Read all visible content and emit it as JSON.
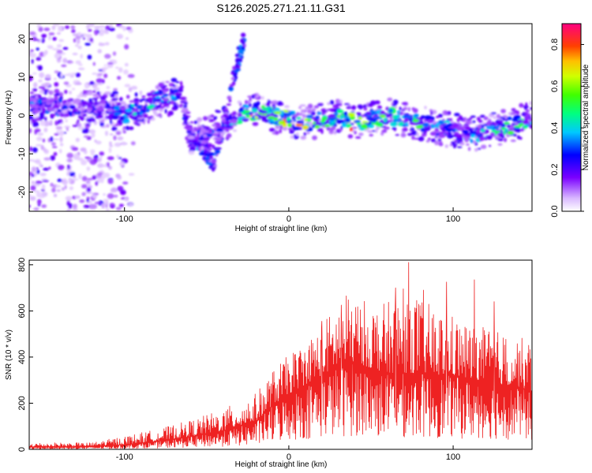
{
  "figure": {
    "title": "S126.2025.271.21.11.G31"
  },
  "chart_data": [
    {
      "type": "heatmap",
      "title": "S126.2025.271.21.11.G31",
      "xlabel": "Height of straight line (km)",
      "ylabel": "Frequency (Hz)",
      "xlim": [
        -158,
        148
      ],
      "ylim": [
        -25,
        24
      ],
      "xticks": [
        -100,
        0,
        100
      ],
      "yticks": [
        -20,
        -10,
        0,
        10,
        20
      ],
      "colorbar": {
        "label": "Normalized spectral amplitude",
        "range": [
          0,
          0.9
        ],
        "ticks": [
          0.0,
          0.2,
          0.4,
          0.6,
          0.8
        ]
      },
      "ridge": {
        "x": [
          -158,
          -140,
          -120,
          -110,
          -100,
          -90,
          -80,
          -70,
          -65,
          -60,
          -50,
          -40,
          -30,
          -25,
          -20,
          -10,
          0,
          10,
          20,
          30,
          40,
          50,
          60,
          70,
          80,
          90,
          100,
          110,
          120,
          130,
          140,
          148
        ],
        "freq": [
          3,
          2,
          2,
          1.5,
          0,
          2,
          4,
          5,
          5,
          -6,
          -5,
          -2,
          0,
          1,
          1,
          0,
          -1,
          -2,
          -1,
          0,
          -2,
          -1,
          0,
          -1,
          -2,
          -3,
          -4,
          -5,
          -4,
          -3,
          -2,
          -1
        ],
        "amplitude": [
          0.35,
          0.3,
          0.25,
          0.3,
          0.4,
          0.4,
          0.45,
          0.4,
          0.3,
          0.25,
          0.3,
          0.3,
          0.45,
          0.75,
          0.6,
          0.5,
          0.8,
          0.65,
          0.5,
          0.55,
          0.8,
          0.5,
          0.55,
          0.45,
          0.55,
          0.4,
          0.35,
          0.35,
          0.4,
          0.5,
          0.55,
          0.4
        ]
      },
      "secondary_track": {
        "x": [
          -60,
          -45,
          -35,
          -27
        ],
        "freq": [
          -6,
          -12,
          8,
          20
        ]
      },
      "background_noise_region": {
        "x_range": [
          -158,
          -90
        ],
        "freq_range": [
          -25,
          24
        ]
      }
    },
    {
      "type": "line",
      "title": "",
      "xlabel": "Height of straight line (km)",
      "ylabel": "SNR (10 * v/v)",
      "xlim": [
        -158,
        148
      ],
      "ylim": [
        0,
        820
      ],
      "xticks": [
        -100,
        0,
        100
      ],
      "yticks": [
        0,
        200,
        400,
        600,
        800
      ],
      "color": "#ee2222",
      "envelope": {
        "x": [
          -158,
          -120,
          -100,
          -80,
          -60,
          -40,
          -20,
          -10,
          0,
          10,
          20,
          30,
          40,
          50,
          60,
          70,
          80,
          90,
          100,
          110,
          120,
          130,
          140,
          148
        ],
        "y_max": [
          30,
          30,
          60,
          90,
          130,
          180,
          250,
          350,
          420,
          480,
          560,
          650,
          680,
          650,
          650,
          760,
          680,
          620,
          600,
          560,
          540,
          520,
          500,
          480
        ],
        "y_mean": [
          10,
          12,
          20,
          35,
          55,
          80,
          120,
          190,
          240,
          280,
          320,
          360,
          380,
          350,
          330,
          330,
          330,
          320,
          320,
          300,
          300,
          280,
          270,
          250
        ]
      },
      "peaks": [
        {
          "x": 73,
          "y": 810
        },
        {
          "x": 113,
          "y": 735
        },
        {
          "x": 96,
          "y": 725
        },
        {
          "x": 65,
          "y": 700
        },
        {
          "x": 82,
          "y": 690
        },
        {
          "x": 35,
          "y": 665
        },
        {
          "x": 125,
          "y": 640
        },
        {
          "x": 32,
          "y": 625
        },
        {
          "x": 20,
          "y": 555
        }
      ]
    }
  ]
}
